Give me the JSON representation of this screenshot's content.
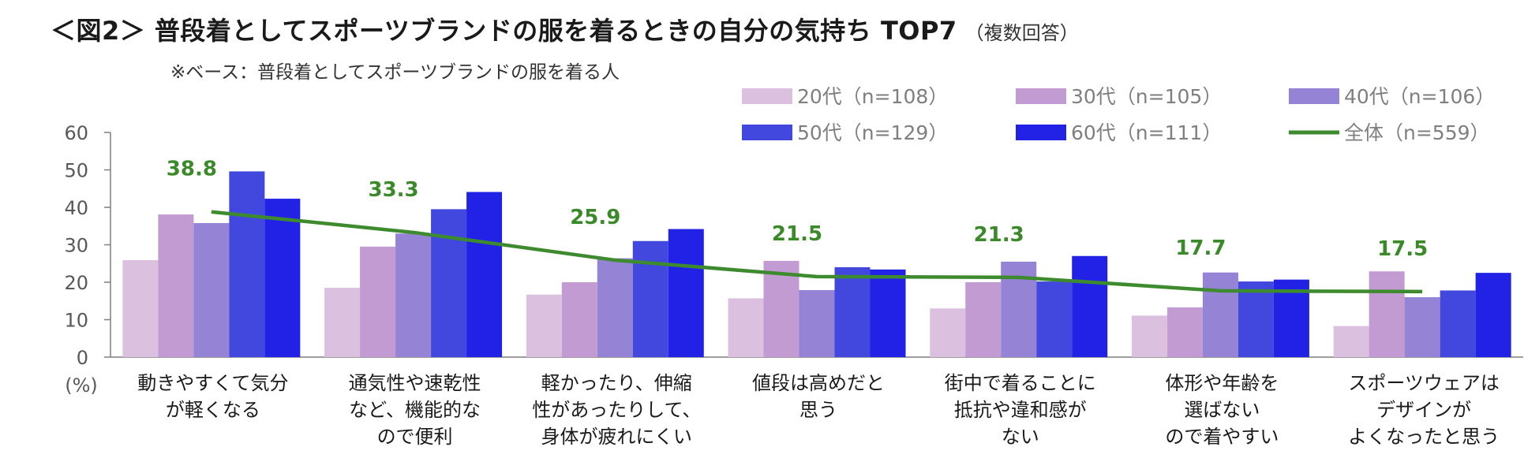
{
  "chart_data": {
    "type": "bar",
    "title": "＜図2＞ 普段着としてスポーツブランドの服を着るときの自分の気持ち TOP7",
    "title_note": "（複数回答）",
    "subtitle": "※ベース：普段着としてスポーツブランドの服を着る人",
    "ylabel": "(%)",
    "ylim": [
      0,
      60
    ],
    "yticks": [
      0,
      10,
      20,
      30,
      40,
      50,
      60
    ],
    "grid": false,
    "legend_position": "top-right",
    "categories": [
      [
        "動きやすくて気分",
        "が軽くなる"
      ],
      [
        "通気性や速乾性",
        "など、機能的な",
        "ので便利"
      ],
      [
        "軽かったり、伸縮",
        "性があったりして、",
        "身体が疲れにくい"
      ],
      [
        "値段は高めだと",
        "思う"
      ],
      [
        "街中で着ることに",
        "抵抗や違和感が",
        "ない"
      ],
      [
        "体形や年齢を",
        "選ばない",
        "ので着やすい"
      ],
      [
        "スポーツウェアは",
        "デザインが",
        "よくなったと思う"
      ]
    ],
    "series": [
      {
        "name": "20代（n=108）",
        "color": "#dcc0e0",
        "values": [
          25.9,
          18.5,
          16.7,
          15.7,
          13.0,
          11.1,
          8.3
        ]
      },
      {
        "name": "30代（n=105）",
        "color": "#c39bd3",
        "values": [
          38.1,
          29.5,
          20.0,
          25.7,
          20.0,
          13.3,
          22.9
        ]
      },
      {
        "name": "40代（n=106）",
        "color": "#9583d6",
        "values": [
          35.8,
          33.0,
          26.4,
          17.9,
          25.5,
          22.6,
          16.0
        ]
      },
      {
        "name": "50代（n=129）",
        "color": "#4248dd",
        "values": [
          49.6,
          39.5,
          31.0,
          24.0,
          20.2,
          20.2,
          17.8
        ]
      },
      {
        "name": "60代（n=111）",
        "color": "#2222e6",
        "values": [
          42.3,
          44.1,
          34.2,
          23.4,
          27.0,
          20.7,
          22.5
        ]
      }
    ],
    "total": {
      "name": "全体（n=559）",
      "color": "#3d8b2e",
      "values": [
        38.8,
        33.3,
        25.9,
        21.5,
        21.3,
        17.7,
        17.5
      ],
      "labels": [
        "38.8",
        "33.3",
        "25.9",
        "21.5",
        "21.3",
        "17.7",
        "17.5"
      ]
    }
  }
}
